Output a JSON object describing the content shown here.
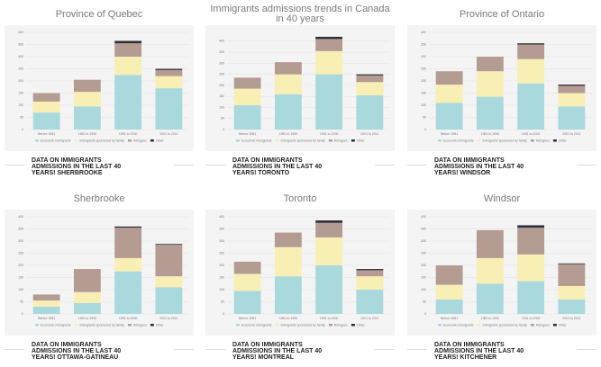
{
  "chart_data": [
    {
      "type": "bar",
      "stacked": true,
      "title": "Province of Quebec",
      "categories": [
        "Before 1981",
        "1981 to 1990",
        "1991 to 2000",
        "2001 to 2011"
      ],
      "series": [
        {
          "name": "Economic immigrants",
          "color": "#a9d9dd",
          "values": [
            70,
            95,
            225,
            170
          ]
        },
        {
          "name": "Immigrants sponsored by family",
          "color": "#f8efb4",
          "values": [
            45,
            60,
            75,
            50
          ]
        },
        {
          "name": "Refugees",
          "color": "#b59c93",
          "values": [
            35,
            50,
            55,
            25
          ]
        },
        {
          "name": "Other",
          "color": "#2f2f3a",
          "values": [
            0,
            0,
            10,
            5
          ]
        }
      ],
      "ylim": [
        0,
        400
      ],
      "yticks": [
        0,
        50,
        100,
        150,
        200,
        250,
        300,
        350,
        400
      ],
      "grid": true
    },
    {
      "type": "bar",
      "stacked": true,
      "title": "Immigrants admissions trends in Canada in 40 years",
      "categories": [
        "Before 1981",
        "1981 to 1990",
        "1991 to 2000",
        "2001 to 2011"
      ],
      "series": [
        {
          "name": "Economic immigrants",
          "color": "#a9d9dd",
          "values": [
            110,
            160,
            250,
            155
          ]
        },
        {
          "name": "Immigrants sponsored by family",
          "color": "#f8efb4",
          "values": [
            75,
            90,
            105,
            60
          ]
        },
        {
          "name": "Refugees",
          "color": "#b59c93",
          "values": [
            50,
            55,
            55,
            30
          ]
        },
        {
          "name": "Other",
          "color": "#2f2f3a",
          "values": [
            0,
            0,
            10,
            5
          ]
        }
      ],
      "ylim": [
        0,
        440
      ],
      "yticks": [
        0,
        50,
        100,
        150,
        200,
        250,
        300,
        350,
        400
      ],
      "grid": true
    },
    {
      "type": "bar",
      "stacked": true,
      "title": "Province of Ontario",
      "categories": [
        "Before 1981",
        "1981 to 1990",
        "1991 to 2000",
        "2001 to 2011"
      ],
      "series": [
        {
          "name": "Economic immigrants",
          "color": "#a9d9dd",
          "values": [
            110,
            135,
            190,
            95
          ]
        },
        {
          "name": "Immigrants sponsored by family",
          "color": "#f8efb4",
          "values": [
            75,
            105,
            100,
            55
          ]
        },
        {
          "name": "Refugees",
          "color": "#b59c93",
          "values": [
            55,
            60,
            60,
            30
          ]
        },
        {
          "name": "Other",
          "color": "#2f2f3a",
          "values": [
            0,
            0,
            5,
            5
          ]
        }
      ],
      "ylim": [
        0,
        400
      ],
      "yticks": [
        0,
        50,
        100,
        150,
        200,
        250,
        300,
        350,
        400
      ],
      "grid": true
    },
    {
      "type": "bar",
      "stacked": true,
      "title": "Sherbrooke",
      "categories": [
        "Before 1981",
        "1981 to 1990",
        "1991 to 2000",
        "2001 to 2011"
      ],
      "series": [
        {
          "name": "Economic immigrants",
          "color": "#a9d9dd",
          "values": [
            30,
            45,
            175,
            110
          ]
        },
        {
          "name": "Immigrants sponsored by family",
          "color": "#f8efb4",
          "values": [
            25,
            45,
            55,
            45
          ]
        },
        {
          "name": "Refugees",
          "color": "#b59c93",
          "values": [
            25,
            95,
            125,
            130
          ]
        },
        {
          "name": "Other",
          "color": "#2f2f3a",
          "values": [
            0,
            0,
            5,
            3
          ]
        }
      ],
      "ylim": [
        0,
        400
      ],
      "yticks": [
        0,
        50,
        100,
        150,
        200,
        250,
        300,
        350,
        400
      ],
      "grid": true
    },
    {
      "type": "bar",
      "stacked": true,
      "title": "Toronto",
      "categories": [
        "Before 1981",
        "1981 to 1990",
        "1991 to 2000",
        "2001 to 2011"
      ],
      "series": [
        {
          "name": "Economic immigrants",
          "color": "#a9d9dd",
          "values": [
            95,
            155,
            200,
            100
          ]
        },
        {
          "name": "Immigrants sponsored by family",
          "color": "#f8efb4",
          "values": [
            70,
            120,
            115,
            55
          ]
        },
        {
          "name": "Refugees",
          "color": "#b59c93",
          "values": [
            50,
            60,
            60,
            25
          ]
        },
        {
          "name": "Other",
          "color": "#2f2f3a",
          "values": [
            0,
            0,
            10,
            5
          ]
        }
      ],
      "ylim": [
        0,
        400
      ],
      "yticks": [
        0,
        50,
        100,
        150,
        200,
        250,
        300,
        350,
        400
      ],
      "grid": true
    },
    {
      "type": "bar",
      "stacked": true,
      "title": "Windsor",
      "categories": [
        "Before 1981",
        "1981 to 1990",
        "1991 to 2000",
        "2001 to 2011"
      ],
      "series": [
        {
          "name": "Economic immigrants",
          "color": "#a9d9dd",
          "values": [
            60,
            125,
            135,
            60
          ]
        },
        {
          "name": "Immigrants sponsored by family",
          "color": "#f8efb4",
          "values": [
            60,
            105,
            110,
            55
          ]
        },
        {
          "name": "Refugees",
          "color": "#b59c93",
          "values": [
            80,
            115,
            110,
            90
          ]
        },
        {
          "name": "Other",
          "color": "#2f2f3a",
          "values": [
            0,
            0,
            10,
            3
          ]
        }
      ],
      "ylim": [
        0,
        400
      ],
      "yticks": [
        0,
        50,
        100,
        150,
        200,
        250,
        300,
        350,
        400
      ],
      "grid": true
    }
  ],
  "captions": [
    "DATA ON IMMIGRANTS\nADMISSIONS IN THE LAST 40\nYEARS! SHERBROOKE",
    "DATA ON IMMIGRANTS\nADMISSIONS IN THE LAST 40\nYEARS! TORONTO",
    "DATA ON IMMIGRANTS\nADMISSIONS IN THE LAST 40\nYEARS! WINDSOR",
    "DATA ON IMMIGRANTS\nADMISSIONS IN THE LAST 40\nYEARS! OTTAWA-GATINEAU",
    "DATA ON IMMIGRANTS\nADMISSIONS IN THE LAST 40\nYEARS! MONTREAL",
    "DATA ON IMMIGRANTS\nADMISSIONS IN THE LAST 40\nYEARS! KITCHENER"
  ]
}
